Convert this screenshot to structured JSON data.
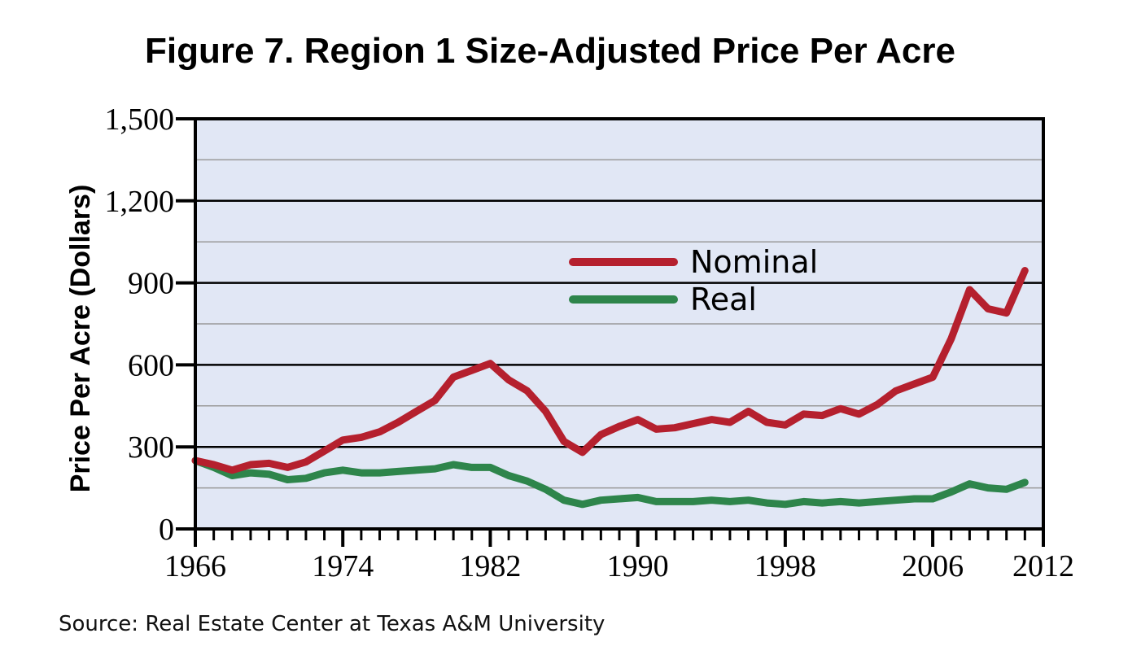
{
  "chart_data": {
    "type": "line",
    "title": "Figure 7. Region 1 Size-Adjusted Price Per Acre",
    "xlabel": "",
    "ylabel": "Price Per Acre (Dollars)",
    "xlim": [
      1966,
      2012
    ],
    "ylim": [
      0,
      1500
    ],
    "x_ticks": [
      "1966",
      "1974",
      "1982",
      "1990",
      "1998",
      "2006",
      "2012"
    ],
    "y_ticks": [
      "0",
      "300",
      "600",
      "900",
      "1,200",
      "1,500"
    ],
    "grid": true,
    "legend_position": "center-right",
    "x": [
      1966,
      1967,
      1968,
      1969,
      1970,
      1971,
      1972,
      1973,
      1974,
      1975,
      1976,
      1977,
      1978,
      1979,
      1980,
      1981,
      1982,
      1983,
      1984,
      1985,
      1986,
      1987,
      1988,
      1989,
      1990,
      1991,
      1992,
      1993,
      1994,
      1995,
      1996,
      1997,
      1998,
      1999,
      2000,
      2001,
      2002,
      2003,
      2004,
      2005,
      2006,
      2007,
      2008,
      2009,
      2010,
      2011
    ],
    "series": [
      {
        "name": "Nominal",
        "color": "#b5202e",
        "values": [
          250,
          235,
          215,
          235,
          240,
          225,
          245,
          285,
          325,
          335,
          355,
          390,
          430,
          470,
          555,
          580,
          605,
          545,
          505,
          430,
          320,
          280,
          345,
          375,
          400,
          365,
          370,
          385,
          400,
          390,
          430,
          390,
          380,
          420,
          415,
          440,
          420,
          455,
          505,
          530,
          555,
          695,
          875,
          805,
          790,
          945
        ]
      },
      {
        "name": "Real",
        "color": "#2e854b",
        "values": [
          250,
          225,
          195,
          205,
          200,
          180,
          185,
          205,
          215,
          205,
          205,
          210,
          215,
          220,
          235,
          225,
          225,
          195,
          175,
          145,
          105,
          90,
          105,
          110,
          115,
          100,
          100,
          100,
          105,
          100,
          105,
          95,
          90,
          100,
          95,
          100,
          95,
          100,
          105,
          110,
          110,
          135,
          165,
          150,
          145,
          170
        ]
      }
    ],
    "source": "Source: Real Estate Center at Texas A&M University"
  },
  "colors": {
    "plot_background": "#e1e7f5",
    "major_grid": "#000000",
    "minor_grid": "#999999"
  }
}
